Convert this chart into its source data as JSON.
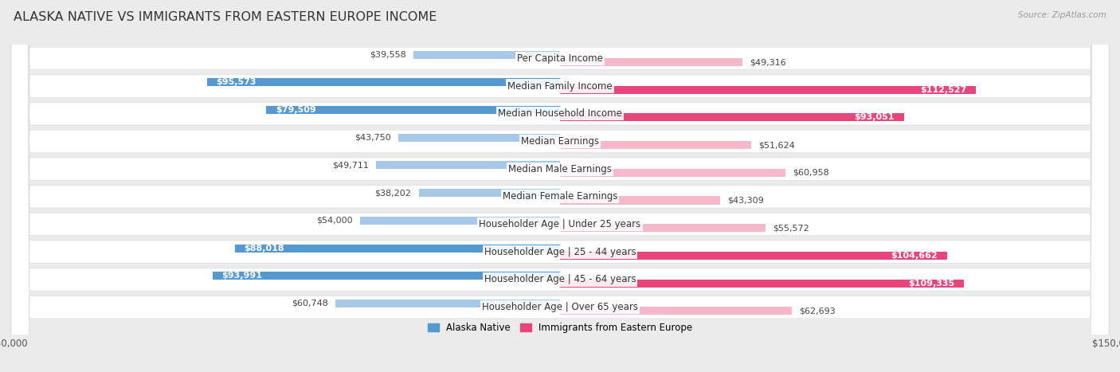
{
  "title": "Alaska Native vs Immigrants from Eastern Europe Income",
  "source": "Source: ZipAtlas.com",
  "categories": [
    "Per Capita Income",
    "Median Family Income",
    "Median Household Income",
    "Median Earnings",
    "Median Male Earnings",
    "Median Female Earnings",
    "Householder Age | Under 25 years",
    "Householder Age | 25 - 44 years",
    "Householder Age | 45 - 64 years",
    "Householder Age | Over 65 years"
  ],
  "alaska_values": [
    39558,
    95573,
    79509,
    43750,
    49711,
    38202,
    54000,
    88018,
    93991,
    60748
  ],
  "immigrant_values": [
    49316,
    112527,
    93051,
    51624,
    60958,
    43309,
    55572,
    104662,
    109335,
    62693
  ],
  "alaska_color_light": "#a8c8e8",
  "alaska_color_dark": "#5599d0",
  "immigrant_color_light": "#f7b8cc",
  "immigrant_color_dark": "#e8457a",
  "max_value": 150000,
  "background_color": "#ebebeb",
  "row_bg_color": "#ffffff",
  "title_fontsize": 11.5,
  "label_fontsize": 8.5,
  "value_fontsize": 8.0,
  "dark_threshold_alaska": 65000,
  "dark_threshold_immigrant": 65000
}
